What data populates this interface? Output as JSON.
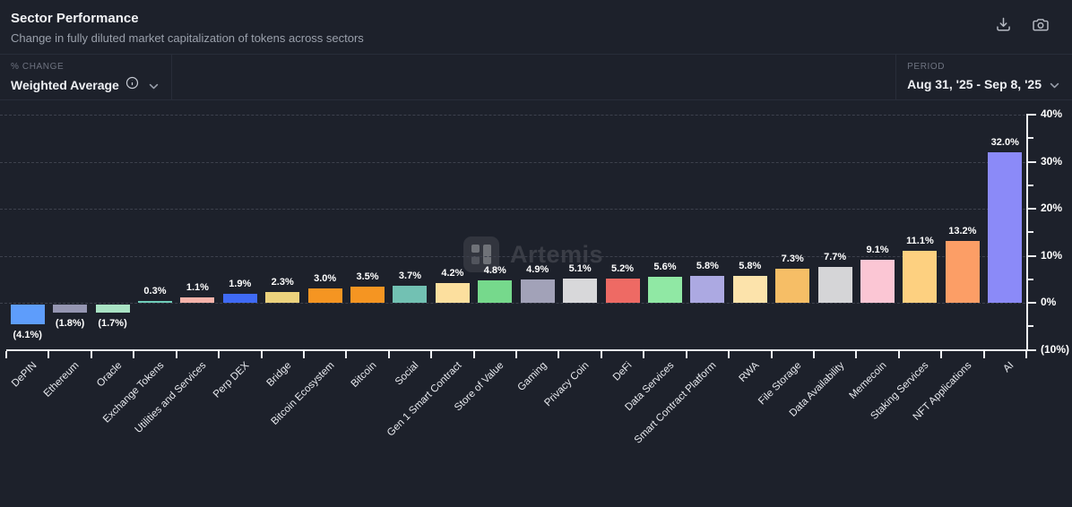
{
  "header": {
    "title": "Sector Performance",
    "subtitle": "Change in fully diluted market capitalization of tokens across sectors"
  },
  "controls": {
    "metric_label": "% CHANGE",
    "metric_value": "Weighted Average",
    "period_label": "PERIOD",
    "period_value": "Aug 31, '25 - Sep 8, '25"
  },
  "watermark": "Artemis",
  "chart_data": {
    "type": "bar",
    "title": "Sector Performance",
    "ylabel": "% change in fully diluted market cap",
    "ylim": [
      -10,
      40
    ],
    "grid": "dashed horizontal gridlines every 10%, y-axis on right side",
    "legend": "none",
    "categories": [
      "DePIN",
      "Ethereum",
      "Oracle",
      "Exchange Tokens",
      "Utilities and Services",
      "Perp DEX",
      "Bridge",
      "Bitcoin Ecosystem",
      "Bitcoin",
      "Social",
      "Gen 1 Smart Contract",
      "Store of Value",
      "Gaming",
      "Privacy Coin",
      "DeFi",
      "Data Services",
      "Smart Contract Platform",
      "RWA",
      "File Storage",
      "Data Availability",
      "Memecoin",
      "Staking Services",
      "NFT Applications",
      "AI"
    ],
    "values": [
      -4.1,
      -1.8,
      -1.7,
      0.3,
      1.1,
      1.9,
      2.3,
      3.0,
      3.5,
      3.7,
      4.2,
      4.8,
      4.9,
      5.1,
      5.2,
      5.6,
      5.8,
      5.8,
      7.3,
      7.7,
      9.1,
      11.1,
      13.2,
      32.0
    ],
    "labels": [
      "(4.1%)",
      "(1.8%)",
      "(1.7%)",
      "0.3%",
      "1.1%",
      "1.9%",
      "2.3%",
      "3.0%",
      "3.5%",
      "3.7%",
      "4.2%",
      "4.8%",
      "4.9%",
      "5.1%",
      "5.2%",
      "5.6%",
      "5.8%",
      "5.8%",
      "7.3%",
      "7.7%",
      "9.1%",
      "11.1%",
      "13.2%",
      "32.0%"
    ],
    "colors": [
      "#5E9DFB",
      "#9596B2",
      "#A9E3C4",
      "#6FCDB9",
      "#F6B3AA",
      "#3F6AF5",
      "#ECD27D",
      "#F59522",
      "#F59522",
      "#72C1B3",
      "#FCDF9E",
      "#76D98C",
      "#A2A2B8",
      "#D8D8DA",
      "#EE6A64",
      "#90E8A4",
      "#ACA9E2",
      "#FCE3AB",
      "#F6BE66",
      "#D5D5D7",
      "#FBC6D4",
      "#FDD080",
      "#FC9E66",
      "#8B8AF8"
    ],
    "y_ticks": [
      {
        "value": 40,
        "label": "40%"
      },
      {
        "value": 30,
        "label": "30%"
      },
      {
        "value": 20,
        "label": "20%"
      },
      {
        "value": 10,
        "label": "10%"
      },
      {
        "value": 0,
        "label": "0%"
      },
      {
        "value": -10,
        "label": "(10%)"
      }
    ],
    "y_minor_ticks": [
      35,
      25,
      15,
      5,
      -5
    ]
  }
}
